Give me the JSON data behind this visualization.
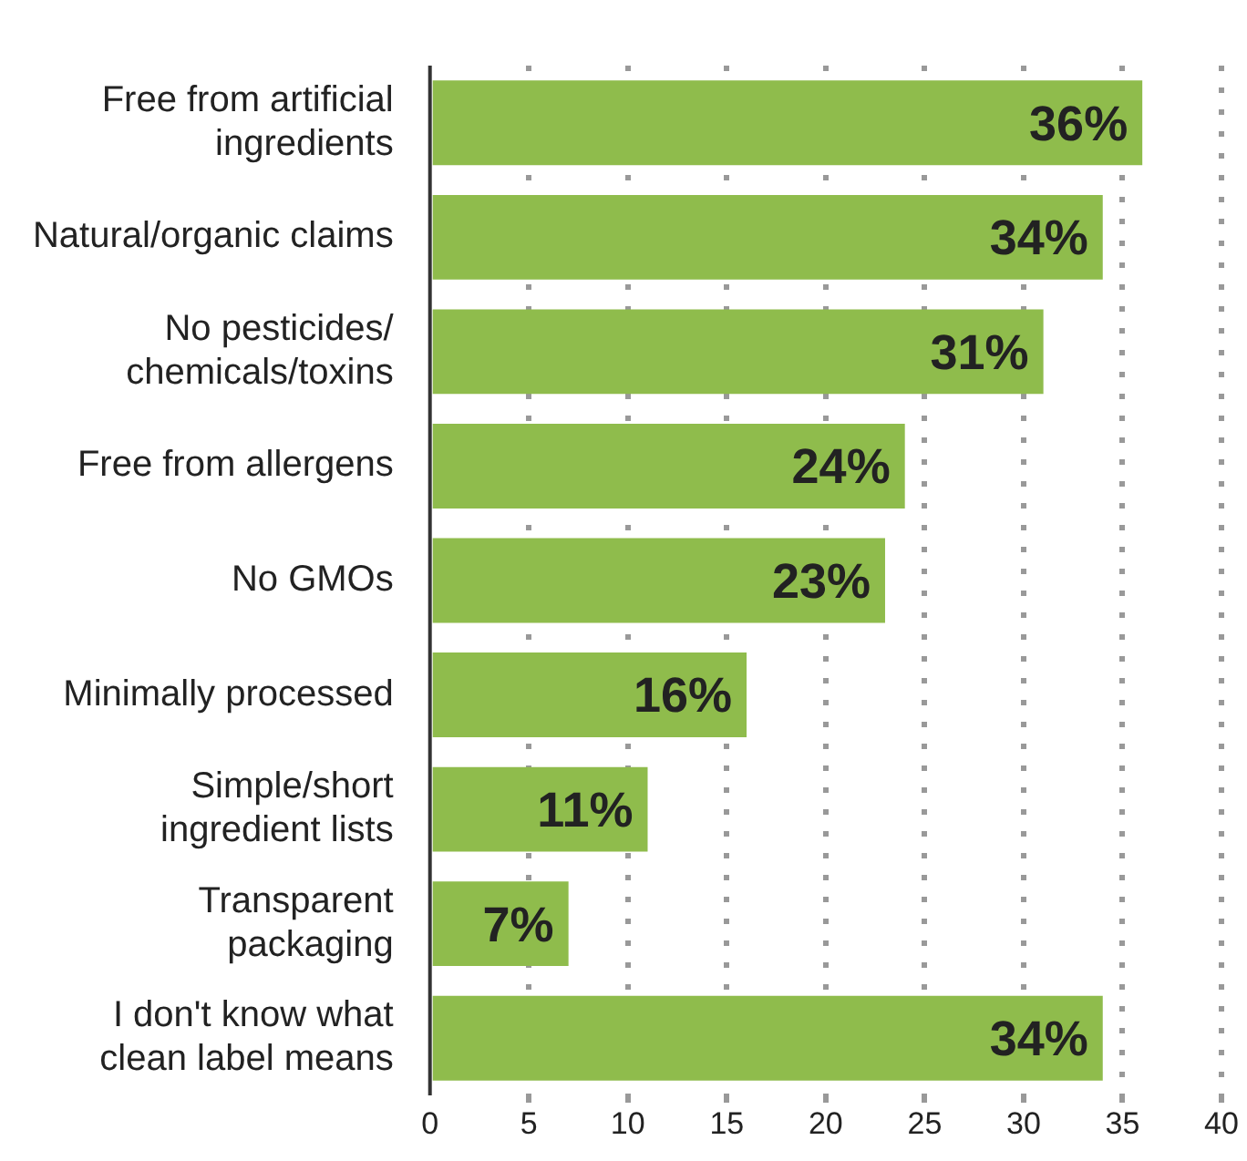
{
  "chart_data": {
    "type": "bar",
    "orientation": "horizontal",
    "categories": [
      "Free from artificial ingredients",
      "Natural/organic claims",
      "No pesticides/ chemicals/toxins",
      "Free from allergens",
      "No GMOs",
      "Minimally processed",
      "Simple/short ingredient lists",
      "Transparent packaging",
      "I don't know what clean label means"
    ],
    "values": [
      36,
      34,
      31,
      24,
      23,
      16,
      11,
      7,
      34
    ],
    "value_labels": [
      "36%",
      "34%",
      "31%",
      "24%",
      "23%",
      "16%",
      "11%",
      "7%",
      "34%"
    ],
    "color": "#8fbc4c",
    "xlim": [
      0,
      40
    ],
    "xticks": [
      0,
      5,
      10,
      15,
      20,
      25,
      30,
      35,
      40
    ],
    "grid": "x",
    "legend": false
  }
}
